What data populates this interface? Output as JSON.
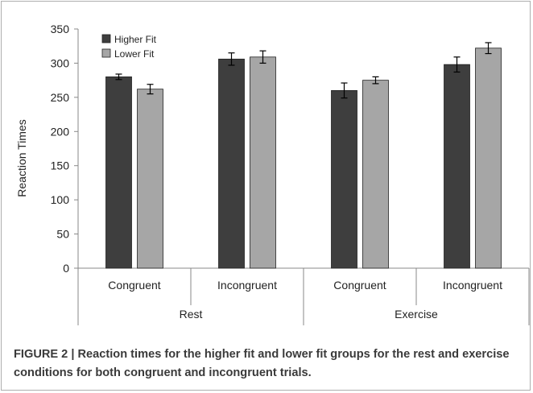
{
  "chart_data": {
    "type": "bar",
    "title": "",
    "ylabel": "Reaction Times",
    "xlabel": "",
    "ylim": [
      0,
      350
    ],
    "yticks": [
      0,
      50,
      100,
      150,
      200,
      250,
      300,
      350
    ],
    "grid": false,
    "legend_position": "top-left",
    "groups": [
      {
        "label": "Rest",
        "categories": [
          "Congruent",
          "Incongruent"
        ]
      },
      {
        "label": "Exercise",
        "categories": [
          "Congruent",
          "Incongruent"
        ]
      }
    ],
    "categories": [
      "Congruent",
      "Incongruent",
      "Congruent",
      "Incongruent"
    ],
    "series": [
      {
        "name": "Higher Fit",
        "color": "#3e3e3e",
        "values": [
          280,
          306,
          260,
          298
        ],
        "errors": [
          4,
          9,
          11,
          11
        ]
      },
      {
        "name": "Lower Fit",
        "color": "#a6a6a6",
        "values": [
          262,
          309,
          275,
          322
        ],
        "errors": [
          7,
          9,
          5,
          8
        ]
      }
    ]
  },
  "caption": "FIGURE 2 | Reaction times for the higher fit and lower fit groups for the rest and exercise conditions for both congruent and incongruent trials."
}
